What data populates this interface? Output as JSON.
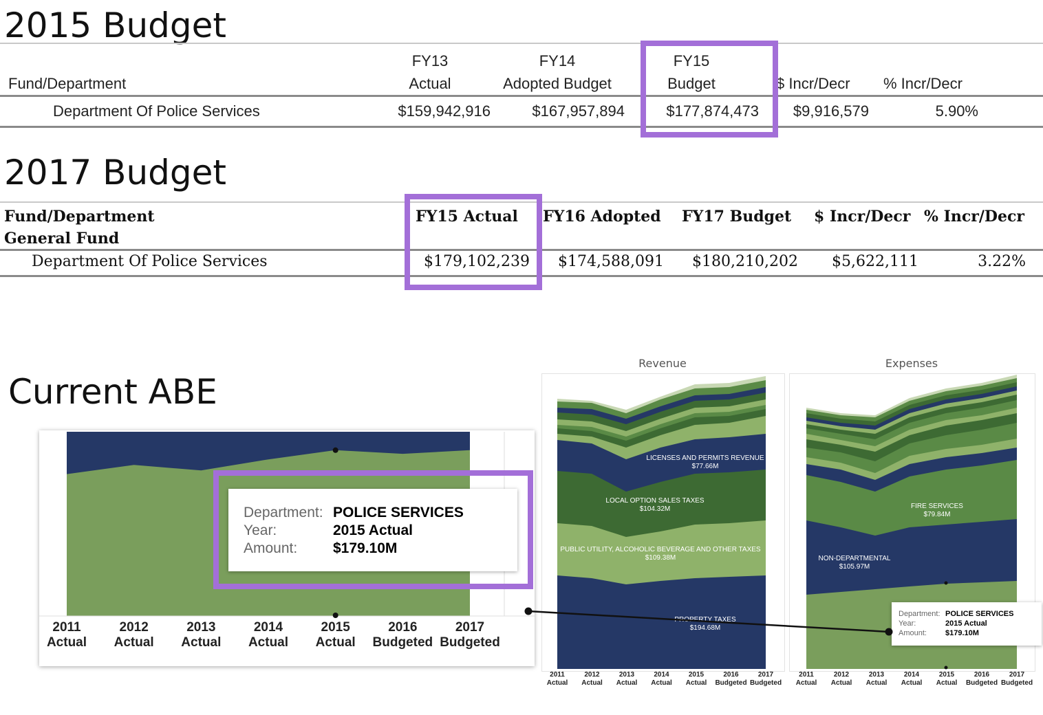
{
  "sec2015": {
    "title": "2015 Budget",
    "hdr": {
      "fund_dept": "Fund/Department",
      "fy13_l1": "FY13",
      "fy13_l2": "Actual",
      "fy14_l1": "FY14",
      "fy14_l2": "Adopted Budget",
      "fy15_l1": "FY15",
      "fy15_l2": "Budget",
      "incr": "$ Incr/Decr",
      "pct": "% Incr/Decr"
    },
    "row": {
      "dept": "Department Of Police Services",
      "fy13": "$159,942,916",
      "fy14": "$167,957,894",
      "fy15": "$177,874,473",
      "incr": "$9,916,579",
      "pct": "5.90%"
    }
  },
  "sec2017": {
    "title": "2017 Budget",
    "hdr": {
      "fund_dept": "Fund/Department",
      "general_fund": "General Fund",
      "fy15": "FY15 Actual",
      "fy16": "FY16 Adopted",
      "fy17": "FY17 Budget",
      "incr": "$ Incr/Decr",
      "pct": "% Incr/Decr"
    },
    "row": {
      "dept": "Department Of Police Services",
      "fy15": "$179,102,239",
      "fy16": "$174,588,091",
      "fy17": "$180,210,202",
      "incr": "$5,622,111",
      "pct": "3.22%"
    }
  },
  "current": {
    "title": "Current ABE",
    "tooltip": {
      "dept_label": "Department:",
      "dept_value": "POLICE SERVICES",
      "year_label": "Year:",
      "year_value": "2015 Actual",
      "amount_label": "Amount:",
      "amount_value": "$179.10M"
    }
  },
  "small_tooltip": {
    "dept_label": "Department:",
    "dept_value": "POLICE SERVICES",
    "year_label": "Year:",
    "year_value": "2015 Actual",
    "amount_label": "Amount:",
    "amount_value": "$179.10M"
  },
  "colors": {
    "navy": "#253866",
    "green": "#7a9e5c",
    "dark_green": "#3d6a33",
    "mid_green": "#5a8a46",
    "light_green": "#8fb26a",
    "highlight": "#a36fd8"
  },
  "chart_data": [
    {
      "type": "area",
      "name": "current-abe",
      "x": [
        "2011 Actual",
        "2012 Actual",
        "2013 Actual",
        "2014 Actual",
        "2015 Actual",
        "2016 Budgeted",
        "2017 Budgeted"
      ],
      "x_lines": [
        [
          "2011",
          "Actual"
        ],
        [
          "2012",
          "Actual"
        ],
        [
          "2013",
          "Actual"
        ],
        [
          "2014",
          "Actual"
        ],
        [
          "2015",
          "Actual"
        ],
        [
          "2016",
          "Budgeted"
        ],
        [
          "2017",
          "Budgeted"
        ]
      ],
      "share": [
        0.77,
        0.82,
        0.79,
        0.85,
        0.9,
        0.88,
        0.9
      ],
      "colors": [
        "#7a9e5c",
        "#253866"
      ],
      "grid": false
    },
    {
      "type": "area",
      "name": "revenue",
      "title": "Revenue",
      "x_lines": [
        [
          "2011",
          "Actual"
        ],
        [
          "2012",
          "Actual"
        ],
        [
          "2013",
          "Actual"
        ],
        [
          "2014",
          "Actual"
        ],
        [
          "2015",
          "Actual"
        ],
        [
          "2016",
          "Budgeted"
        ],
        [
          "2017",
          "Budgeted"
        ]
      ],
      "labels": [
        {
          "text": "LICENSES AND PERMITS REVENUE",
          "value": "$77.66M"
        },
        {
          "text": "LOCAL OPTION SALES TAXES",
          "value": "$104.32M"
        },
        {
          "text": "PUBLIC UTILITY, ALCOHOLIC BEVERAGE AND OTHER TAXES",
          "value": "$109.38M"
        },
        {
          "text": "PROPERTY TAXES",
          "value": "$194.68M"
        }
      ]
    },
    {
      "type": "area",
      "name": "expenses",
      "title": "Expenses",
      "x_lines": [
        [
          "2011",
          "Actual"
        ],
        [
          "2012",
          "Actual"
        ],
        [
          "2013",
          "Actual"
        ],
        [
          "2014",
          "Actual"
        ],
        [
          "2015",
          "Actual"
        ],
        [
          "2016",
          "Budgeted"
        ],
        [
          "2017",
          "Budgeted"
        ]
      ],
      "labels": [
        {
          "text": "FIRE SERVICES",
          "value": "$79.84M"
        },
        {
          "text": "NON-DEPARTMENTAL",
          "value": "$105.97M"
        }
      ]
    }
  ]
}
